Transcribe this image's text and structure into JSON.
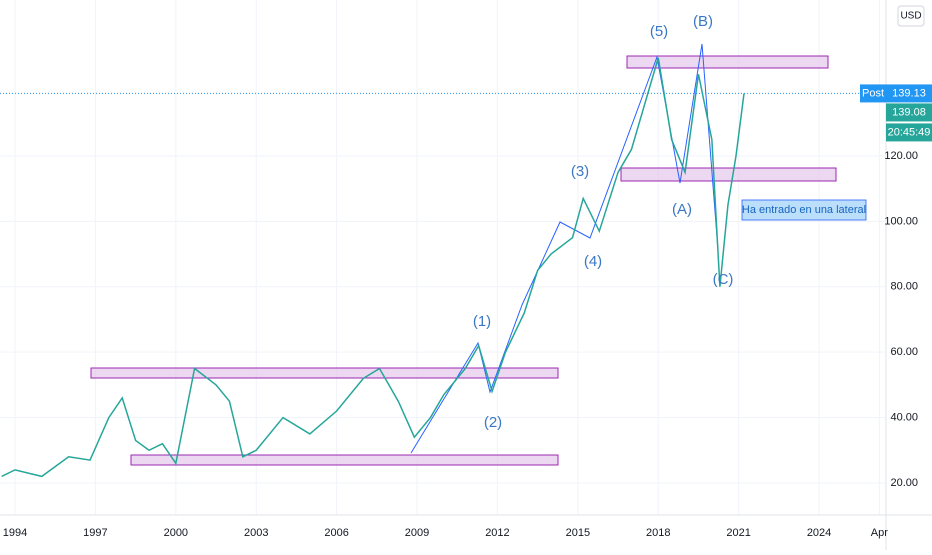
{
  "chart_data": {
    "type": "line",
    "currency": "USD",
    "x": [
      1993.5,
      1994,
      1995,
      1996,
      1996.8,
      1997.5,
      1998,
      1998.5,
      1999,
      1999.5,
      2000,
      2000.7,
      2001.5,
      2002,
      2002.5,
      2003,
      2004,
      2005,
      2006,
      2007,
      2007.6,
      2008.3,
      2008.9,
      2009.5,
      2010,
      2010.8,
      2011.3,
      2011.8,
      2012.3,
      2013,
      2013.5,
      2014,
      2014.8,
      2015.2,
      2015.8,
      2016.5,
      2017,
      2018,
      2018.5,
      2019,
      2019.5,
      2020,
      2020.3,
      2020.6,
      2020.9,
      2021.2
    ],
    "series": [
      {
        "color": "#26a69a",
        "values": [
          22,
          24,
          22,
          28,
          27,
          40,
          46,
          33,
          30,
          32,
          26,
          55,
          50,
          45,
          28,
          30,
          40,
          35,
          42,
          52,
          55,
          45,
          34,
          40,
          47,
          55,
          62,
          48,
          60,
          72,
          85,
          90,
          95,
          107,
          97,
          115,
          122,
          150,
          125,
          115,
          145,
          125,
          80,
          105,
          120,
          139.13
        ]
      }
    ],
    "xlim": [
      1993.44,
      2026.46
    ],
    "xticks": [
      1994,
      1997,
      2000,
      2003,
      2006,
      2009,
      2012,
      2015,
      2018,
      2021,
      2024,
      {
        "value": 2026.25,
        "label": "Apr"
      }
    ],
    "ylim": [
      10.2,
      167.7
    ],
    "yticks": [
      {
        "value": 20,
        "label": "20.00"
      },
      {
        "value": 40,
        "label": "40.00"
      },
      {
        "value": 60,
        "label": "60.00"
      },
      {
        "value": 80,
        "label": "80.00"
      },
      {
        "value": 100,
        "label": "100.00"
      },
      {
        "value": 120,
        "label": "120.00"
      }
    ],
    "grid": true,
    "post_label": "Post",
    "post_price": {
      "value": 139.13,
      "label": "139.13"
    },
    "close_price": "139.08",
    "countdown": "20:45:49",
    "waves": [
      "(5)",
      "(B)",
      "(3)",
      "(A)",
      "(4)",
      "(C)",
      "(1)",
      "(2)"
    ],
    "annotation": "Ha entrado en una lateral"
  }
}
